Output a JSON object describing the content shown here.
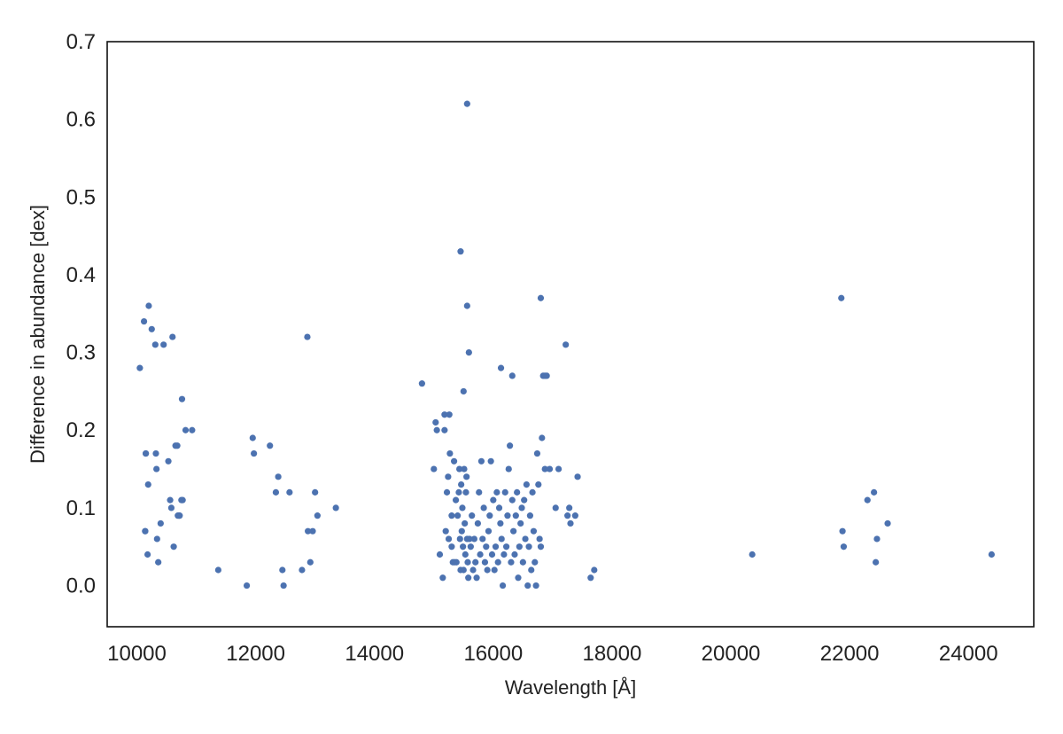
{
  "chart_data": {
    "type": "scatter",
    "title": "",
    "xlabel": "Wavelength [Å]",
    "ylabel": "Difference in abundance [dex]",
    "xlim": [
      9500,
      25100
    ],
    "ylim": [
      -0.053,
      0.7
    ],
    "xticks": [
      10000,
      12000,
      14000,
      16000,
      18000,
      20000,
      22000,
      24000
    ],
    "yticks": [
      0.0,
      0.1,
      0.2,
      0.3,
      0.4,
      0.5,
      0.6,
      0.7
    ],
    "ytick_labels": [
      "0.0",
      "0.1",
      "0.2",
      "0.3",
      "0.4",
      "0.5",
      "0.6",
      "0.7"
    ],
    "grid": false,
    "legend": "none",
    "marker_color": "#4c72b0",
    "series": [
      {
        "x": [
          10050,
          10120,
          10150,
          10190,
          10200,
          10250,
          10310,
          10320,
          10450,
          10600,
          10680,
          10690,
          10710,
          10760,
          10770,
          10820,
          10930,
          10140,
          10180,
          10150,
          10140,
          10330,
          10340,
          10360,
          10400,
          10530,
          10560,
          10580,
          10620,
          10650,
          10720,
          10750,
          11370,
          11850,
          11950,
          11970,
          12240,
          12340,
          12380,
          12450,
          12470,
          12570,
          12780,
          12870,
          12880,
          12920,
          12960,
          13000,
          13040,
          13350,
          14800,
          15000,
          15030,
          15050,
          15100,
          15150,
          15180,
          15180,
          15200,
          15220,
          15240,
          15250,
          15260,
          15270,
          15300,
          15300,
          15320,
          15340,
          15350,
          15370,
          15380,
          15400,
          15420,
          15430,
          15440,
          15450,
          15460,
          15470,
          15480,
          15490,
          15500,
          15510,
          15520,
          15530,
          15540,
          15550,
          15560,
          15570,
          15580,
          15600,
          15620,
          15640,
          15660,
          15680,
          15700,
          15720,
          15740,
          15760,
          15780,
          15800,
          15820,
          15840,
          15860,
          15880,
          15900,
          15920,
          15940,
          15960,
          15980,
          16000,
          16020,
          16040,
          16060,
          16080,
          16100,
          16120,
          16140,
          16160,
          16180,
          16200,
          16220,
          16240,
          16260,
          16280,
          16300,
          16320,
          16340,
          16360,
          16380,
          16400,
          16420,
          16440,
          16460,
          16480,
          16500,
          16520,
          16540,
          16560,
          16580,
          16600,
          16620,
          16640,
          16660,
          16680,
          16700,
          16720,
          16740,
          16760,
          16780,
          16800,
          16820,
          16840,
          16870,
          16900,
          16950,
          17050,
          17100,
          17250,
          17280,
          17300,
          17380,
          17420,
          17640,
          17700,
          15560,
          15450,
          15560,
          15590,
          16130,
          16320,
          16800,
          16870,
          17220,
          15500,
          20360,
          21860,
          21880,
          21900,
          22300,
          22410,
          22440,
          22460,
          22640,
          24390
        ],
        "y": [
          0.28,
          0.34,
          0.17,
          0.13,
          0.36,
          0.33,
          0.31,
          0.17,
          0.31,
          0.32,
          0.18,
          0.09,
          0.09,
          0.24,
          0.11,
          0.2,
          0.2,
          0.07,
          0.04,
          0.17,
          0.07,
          0.15,
          0.06,
          0.03,
          0.08,
          0.16,
          0.11,
          0.1,
          0.05,
          0.18,
          0.09,
          0.11,
          0.02,
          0.0,
          0.19,
          0.17,
          0.18,
          0.12,
          0.14,
          0.02,
          0.0,
          0.12,
          0.02,
          0.32,
          0.07,
          0.03,
          0.07,
          0.12,
          0.09,
          0.1,
          0.26,
          0.15,
          0.21,
          0.2,
          0.04,
          0.01,
          0.22,
          0.2,
          0.07,
          0.12,
          0.14,
          0.06,
          0.22,
          0.17,
          0.09,
          0.05,
          0.03,
          0.16,
          0.03,
          0.11,
          0.03,
          0.09,
          0.12,
          0.15,
          0.06,
          0.02,
          0.13,
          0.07,
          0.1,
          0.05,
          0.02,
          0.15,
          0.08,
          0.04,
          0.12,
          0.14,
          0.06,
          0.03,
          0.01,
          0.06,
          0.05,
          0.09,
          0.02,
          0.06,
          0.03,
          0.01,
          0.08,
          0.12,
          0.04,
          0.16,
          0.06,
          0.1,
          0.03,
          0.05,
          0.02,
          0.07,
          0.09,
          0.16,
          0.04,
          0.11,
          0.02,
          0.05,
          0.12,
          0.03,
          0.1,
          0.08,
          0.06,
          0.0,
          0.04,
          0.12,
          0.05,
          0.09,
          0.15,
          0.18,
          0.03,
          0.11,
          0.07,
          0.04,
          0.09,
          0.12,
          0.01,
          0.05,
          0.08,
          0.1,
          0.03,
          0.11,
          0.06,
          0.13,
          0.0,
          0.05,
          0.09,
          0.02,
          0.12,
          0.07,
          0.03,
          0.0,
          0.17,
          0.13,
          0.06,
          0.05,
          0.19,
          0.27,
          0.15,
          0.27,
          0.15,
          0.1,
          0.15,
          0.09,
          0.1,
          0.08,
          0.09,
          0.14,
          0.01,
          0.02,
          0.36,
          0.43,
          0.62,
          0.3,
          0.28,
          0.27,
          0.37,
          0.27,
          0.31,
          0.25,
          0.04,
          0.37,
          0.07,
          0.05,
          0.11,
          0.12,
          0.03,
          0.06,
          0.08,
          0.04
        ]
      }
    ]
  }
}
